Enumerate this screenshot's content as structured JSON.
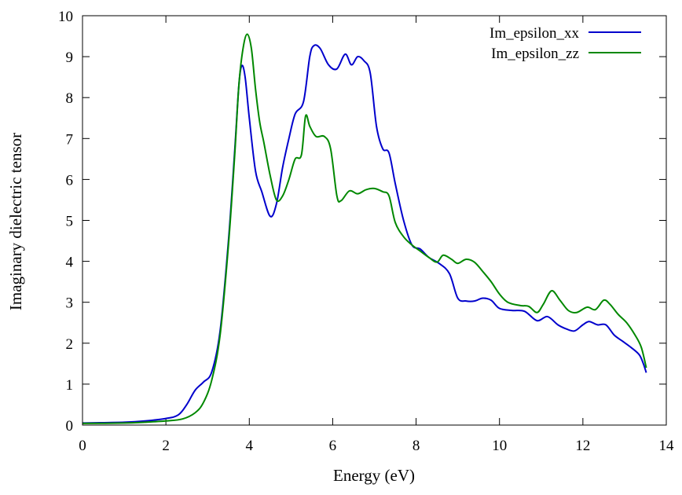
{
  "chart_data": {
    "type": "line",
    "title": "",
    "xlabel": "Energy (eV)",
    "ylabel": "Imaginary dielectric tensor",
    "xlim": [
      0,
      14
    ],
    "ylim": [
      0,
      10
    ],
    "xticks": [
      0,
      2,
      4,
      6,
      8,
      10,
      12,
      14
    ],
    "yticks": [
      0,
      1,
      2,
      3,
      4,
      5,
      6,
      7,
      8,
      9,
      10
    ],
    "grid": false,
    "legend_position": "top-right",
    "series": [
      {
        "name": "Im_epsilon_xx",
        "color": "#0000cc",
        "points": [
          [
            0,
            0.05
          ],
          [
            1.0,
            0.07
          ],
          [
            1.5,
            0.1
          ],
          [
            2.0,
            0.16
          ],
          [
            2.3,
            0.25
          ],
          [
            2.5,
            0.5
          ],
          [
            2.7,
            0.85
          ],
          [
            2.9,
            1.05
          ],
          [
            3.1,
            1.3
          ],
          [
            3.3,
            2.3
          ],
          [
            3.5,
            4.5
          ],
          [
            3.65,
            6.7
          ],
          [
            3.75,
            8.3
          ],
          [
            3.82,
            8.78
          ],
          [
            3.9,
            8.5
          ],
          [
            4.0,
            7.5
          ],
          [
            4.15,
            6.2
          ],
          [
            4.3,
            5.7
          ],
          [
            4.5,
            5.1
          ],
          [
            4.65,
            5.4
          ],
          [
            4.8,
            6.3
          ],
          [
            4.95,
            7.0
          ],
          [
            5.1,
            7.6
          ],
          [
            5.3,
            7.9
          ],
          [
            5.45,
            9.0
          ],
          [
            5.55,
            9.27
          ],
          [
            5.7,
            9.2
          ],
          [
            5.9,
            8.8
          ],
          [
            6.1,
            8.7
          ],
          [
            6.3,
            9.06
          ],
          [
            6.45,
            8.8
          ],
          [
            6.6,
            9.0
          ],
          [
            6.75,
            8.9
          ],
          [
            6.9,
            8.6
          ],
          [
            7.05,
            7.3
          ],
          [
            7.2,
            6.75
          ],
          [
            7.35,
            6.65
          ],
          [
            7.5,
            5.9
          ],
          [
            7.7,
            5.0
          ],
          [
            7.9,
            4.4
          ],
          [
            8.1,
            4.3
          ],
          [
            8.3,
            4.1
          ],
          [
            8.55,
            3.95
          ],
          [
            8.8,
            3.7
          ],
          [
            9.0,
            3.1
          ],
          [
            9.2,
            3.03
          ],
          [
            9.4,
            3.03
          ],
          [
            9.6,
            3.1
          ],
          [
            9.8,
            3.05
          ],
          [
            10.0,
            2.85
          ],
          [
            10.3,
            2.8
          ],
          [
            10.6,
            2.78
          ],
          [
            10.9,
            2.55
          ],
          [
            11.15,
            2.65
          ],
          [
            11.4,
            2.45
          ],
          [
            11.6,
            2.35
          ],
          [
            11.8,
            2.3
          ],
          [
            12.0,
            2.45
          ],
          [
            12.15,
            2.53
          ],
          [
            12.35,
            2.45
          ],
          [
            12.55,
            2.45
          ],
          [
            12.75,
            2.2
          ],
          [
            12.95,
            2.05
          ],
          [
            13.15,
            1.9
          ],
          [
            13.35,
            1.72
          ],
          [
            13.45,
            1.5
          ],
          [
            13.52,
            1.28
          ]
        ]
      },
      {
        "name": "Im_epsilon_zz",
        "color": "#008800",
        "points": [
          [
            0,
            0.04
          ],
          [
            1.0,
            0.05
          ],
          [
            1.5,
            0.07
          ],
          [
            2.0,
            0.1
          ],
          [
            2.4,
            0.15
          ],
          [
            2.7,
            0.3
          ],
          [
            2.9,
            0.55
          ],
          [
            3.1,
            1.1
          ],
          [
            3.3,
            2.2
          ],
          [
            3.5,
            4.4
          ],
          [
            3.65,
            6.6
          ],
          [
            3.75,
            8.3
          ],
          [
            3.85,
            9.2
          ],
          [
            3.95,
            9.55
          ],
          [
            4.05,
            9.2
          ],
          [
            4.15,
            8.2
          ],
          [
            4.25,
            7.4
          ],
          [
            4.35,
            6.9
          ],
          [
            4.5,
            6.1
          ],
          [
            4.65,
            5.5
          ],
          [
            4.8,
            5.6
          ],
          [
            4.95,
            6.0
          ],
          [
            5.1,
            6.5
          ],
          [
            5.25,
            6.6
          ],
          [
            5.35,
            7.55
          ],
          [
            5.45,
            7.3
          ],
          [
            5.6,
            7.05
          ],
          [
            5.8,
            7.05
          ],
          [
            5.95,
            6.75
          ],
          [
            6.1,
            5.6
          ],
          [
            6.2,
            5.48
          ],
          [
            6.4,
            5.72
          ],
          [
            6.6,
            5.65
          ],
          [
            6.8,
            5.75
          ],
          [
            7.0,
            5.78
          ],
          [
            7.2,
            5.7
          ],
          [
            7.35,
            5.6
          ],
          [
            7.5,
            4.95
          ],
          [
            7.7,
            4.6
          ],
          [
            7.9,
            4.4
          ],
          [
            8.1,
            4.25
          ],
          [
            8.3,
            4.1
          ],
          [
            8.5,
            3.98
          ],
          [
            8.65,
            4.15
          ],
          [
            8.85,
            4.05
          ],
          [
            9.0,
            3.95
          ],
          [
            9.2,
            4.05
          ],
          [
            9.4,
            3.98
          ],
          [
            9.6,
            3.75
          ],
          [
            9.8,
            3.5
          ],
          [
            10.0,
            3.2
          ],
          [
            10.2,
            3.0
          ],
          [
            10.5,
            2.92
          ],
          [
            10.7,
            2.9
          ],
          [
            10.9,
            2.75
          ],
          [
            11.05,
            2.95
          ],
          [
            11.25,
            3.28
          ],
          [
            11.45,
            3.05
          ],
          [
            11.65,
            2.8
          ],
          [
            11.85,
            2.75
          ],
          [
            12.1,
            2.88
          ],
          [
            12.3,
            2.82
          ],
          [
            12.5,
            3.05
          ],
          [
            12.65,
            2.95
          ],
          [
            12.85,
            2.7
          ],
          [
            13.05,
            2.5
          ],
          [
            13.25,
            2.2
          ],
          [
            13.4,
            1.9
          ],
          [
            13.52,
            1.4
          ]
        ]
      }
    ]
  }
}
